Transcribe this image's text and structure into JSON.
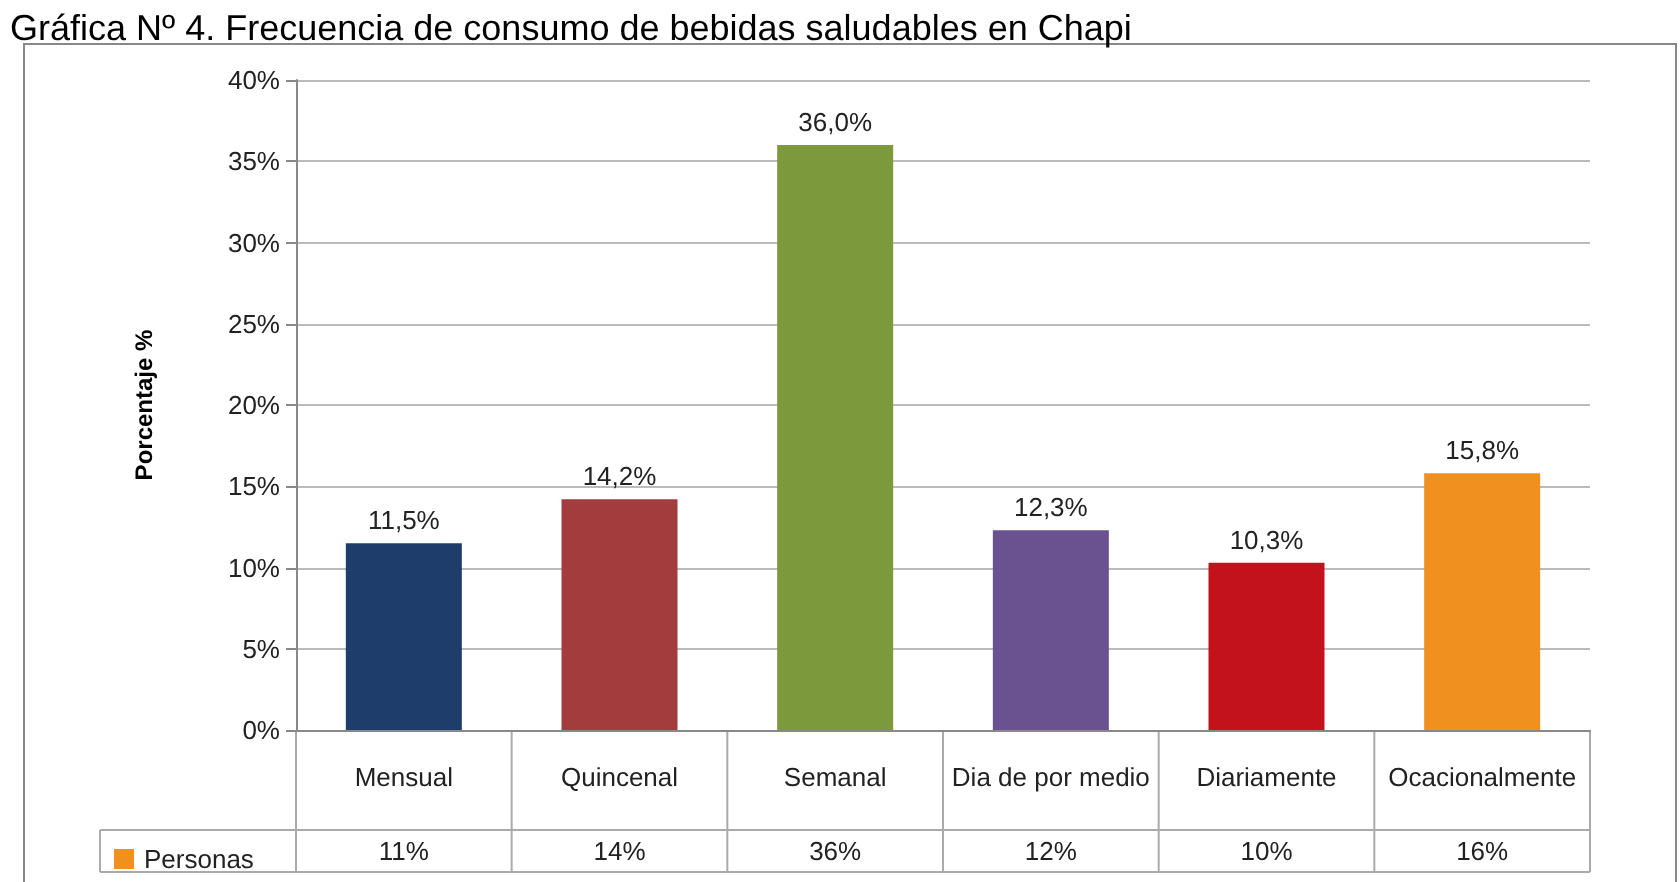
{
  "chart_data": {
    "type": "bar",
    "title": "Gráfica Nº 4. Frecuencia de consumo de bebidas saludables en Chapi",
    "ylabel": "Porcentaje %",
    "categories": [
      "Mensual",
      "Quincenal",
      "Semanal",
      "Dia de por medio",
      "Diariamente",
      "Ocacionalmente"
    ],
    "series": [
      {
        "name": "Personas",
        "values": [
          11.5,
          14.2,
          36.0,
          12.3,
          10.3,
          15.8
        ],
        "value_labels": [
          "11,5%",
          "14,2%",
          "36,0%",
          "12,3%",
          "10,3%",
          "15,8%"
        ]
      }
    ],
    "colors": [
      "#1f3d6b",
      "#a33c3c",
      "#7c9a3c",
      "#6a5290",
      "#c4121c",
      "#f0901e"
    ],
    "annotations": [
      "11%",
      "14%",
      "36%",
      "12%",
      "10%",
      "16%"
    ],
    "ylim": [
      0,
      40
    ],
    "yticks": [
      {
        "value": 0,
        "label": "0%"
      },
      {
        "value": 5,
        "label": "5%"
      },
      {
        "value": 10,
        "label": "10%"
      },
      {
        "value": 15,
        "label": "15%"
      },
      {
        "value": 20,
        "label": "20%"
      },
      {
        "value": 25,
        "label": "25%"
      },
      {
        "value": 30,
        "label": "30%"
      },
      {
        "value": 35,
        "label": "35%"
      },
      {
        "value": 40,
        "label": "40%"
      }
    ],
    "grid": "y",
    "legend": "bottom left"
  }
}
